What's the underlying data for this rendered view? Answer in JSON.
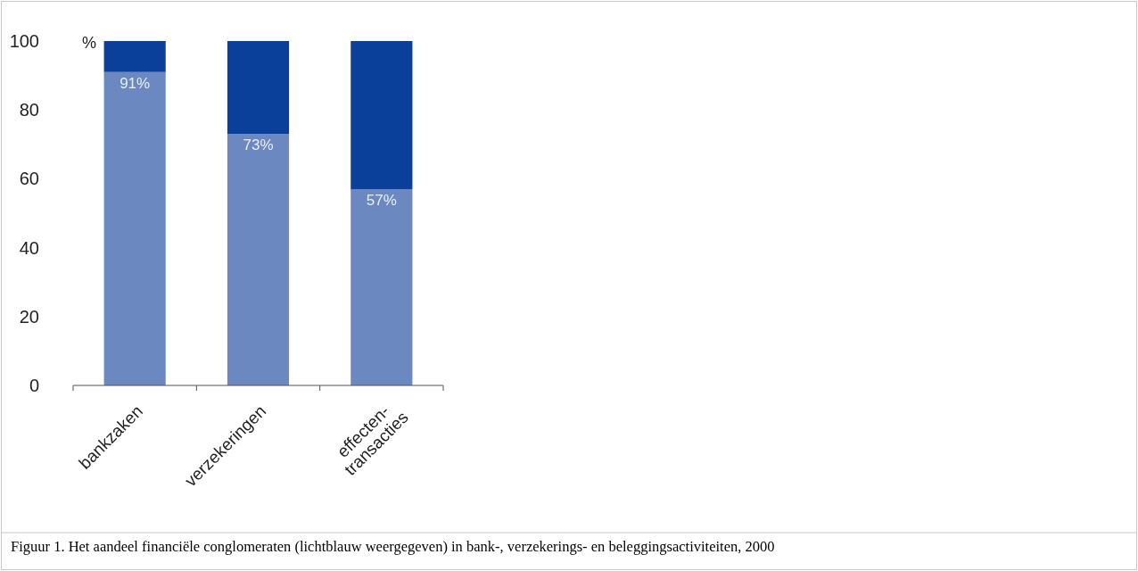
{
  "chart_data": {
    "type": "bar",
    "stacked": true,
    "categories": [
      "bankzaken",
      "verzekeringen",
      "effecten-transacties"
    ],
    "series": [
      {
        "color": "#6c88c0",
        "values": [
          91,
          73,
          57
        ],
        "value_labels": [
          "91%",
          "73%",
          "57%"
        ]
      },
      {
        "color": "#0b409a",
        "values": [
          9,
          27,
          43
        ]
      }
    ],
    "ylabel": "%",
    "ylim": [
      0,
      100
    ],
    "yticks": [
      0,
      20,
      40,
      60,
      80,
      100
    ],
    "grid": false,
    "annotations": [
      "Figuur 1. Het aandeel financiële conglomeraten (lichtblauw weergegeven) in bank-, verzekerings- en beleggingsactiviteiten, 2000"
    ]
  }
}
